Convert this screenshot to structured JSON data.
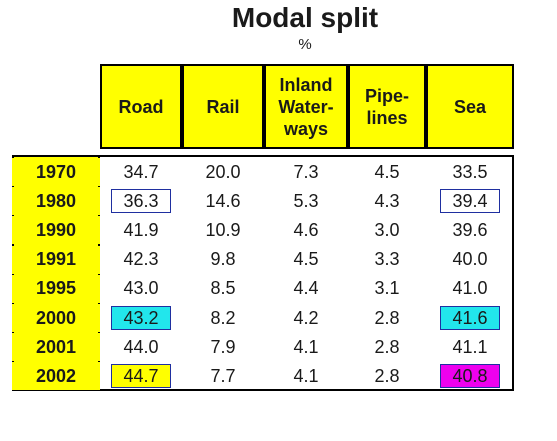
{
  "chart_data": {
    "type": "table",
    "title": "Modal split",
    "unit": "%",
    "columns": [
      "Road",
      "Rail",
      "Inland\nWater-\nways",
      "Pipe-\nlines",
      "Sea"
    ],
    "rows": [
      {
        "year": "1970",
        "values": [
          "34.7",
          "20.0",
          "7.3",
          "4.5",
          "33.5"
        ]
      },
      {
        "year": "1980",
        "values": [
          "36.3",
          "14.6",
          "5.3",
          "4.3",
          "39.4"
        ]
      },
      {
        "year": "1990",
        "values": [
          "41.9",
          "10.9",
          "4.6",
          "3.0",
          "39.6"
        ]
      },
      {
        "year": "1991",
        "values": [
          "42.3",
          "9.8",
          "4.5",
          "3.3",
          "40.0"
        ]
      },
      {
        "year": "1995",
        "values": [
          "43.0",
          "8.5",
          "4.4",
          "3.1",
          "41.0"
        ]
      },
      {
        "year": "2000",
        "values": [
          "43.2",
          "8.2",
          "4.2",
          "2.8",
          "41.6"
        ]
      },
      {
        "year": "2001",
        "values": [
          "44.0",
          "7.9",
          "4.1",
          "2.8",
          "41.1"
        ]
      },
      {
        "year": "2002",
        "values": [
          "44.7",
          "7.7",
          "4.1",
          "2.8",
          "40.8"
        ]
      }
    ],
    "highlights": [
      {
        "row": 1,
        "col": 0,
        "style": "boxed"
      },
      {
        "row": 1,
        "col": 4,
        "style": "boxed"
      },
      {
        "row": 5,
        "col": 0,
        "style": "cyan",
        "color": "#22e6ec"
      },
      {
        "row": 5,
        "col": 4,
        "style": "cyan",
        "color": "#22e6ec"
      },
      {
        "row": 7,
        "col": 0,
        "style": "yellow",
        "color": "#ffff00"
      },
      {
        "row": 7,
        "col": 4,
        "style": "magenta",
        "color": "#ee00ee"
      }
    ],
    "colors": {
      "header": "#ffff00",
      "year_column": "#ffff00"
    }
  }
}
